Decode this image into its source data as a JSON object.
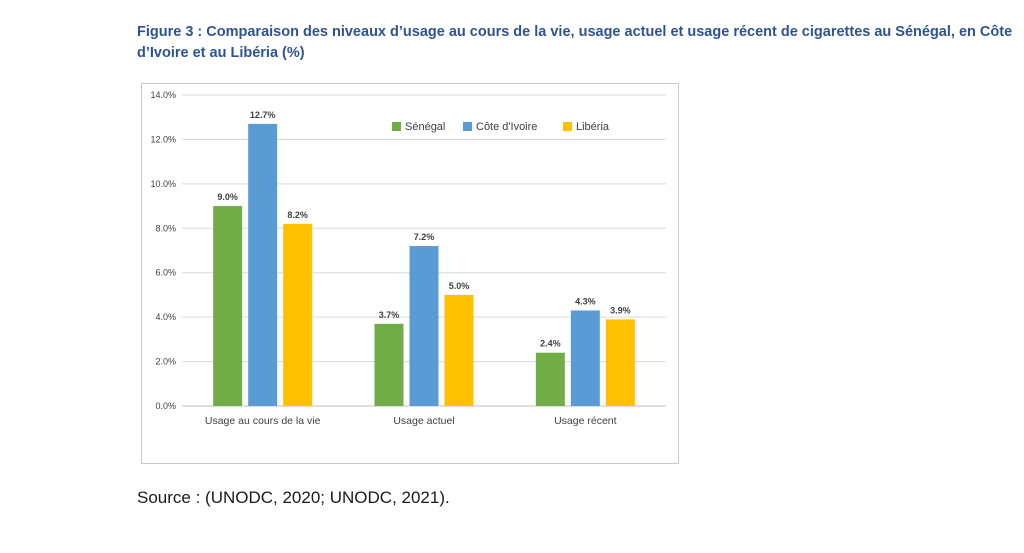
{
  "figure": {
    "title": "Figure 3 : Comparaison des niveaux d’usage au cours de la vie, usage actuel et usage récent de cigarettes au Sénégal, en Côte d’Ivoire et au Libéria (%)"
  },
  "source": "Source : (UNODC, 2020; UNODC, 2021).",
  "chart_data": {
    "type": "bar",
    "title": "",
    "xlabel": "",
    "ylabel": "",
    "categories": [
      "Usage au cours de la vie",
      "Usage actuel",
      "Usage récent"
    ],
    "series": [
      {
        "name": "Sénégal",
        "color": "#70AD47",
        "values": [
          9.0,
          3.7,
          2.4
        ],
        "labels": [
          "9.0%",
          "3.7%",
          "2.4%"
        ]
      },
      {
        "name": "Côte d'Ivoire",
        "color": "#5B9BD5",
        "values": [
          12.7,
          7.2,
          4.3
        ],
        "labels": [
          "12.7%",
          "7.2%",
          "4.3%"
        ]
      },
      {
        "name": "Libéria",
        "color": "#FFC000",
        "values": [
          8.2,
          5.0,
          3.9
        ],
        "labels": [
          "8.2%",
          "5.0%",
          "3.9%"
        ]
      }
    ],
    "ylim": [
      0,
      14
    ],
    "yticks": [
      0,
      2,
      4,
      6,
      8,
      10,
      12,
      14
    ],
    "ytick_labels": [
      "0.0%",
      "2.0%",
      "4.0%",
      "6.0%",
      "8.0%",
      "10.0%",
      "12.0%",
      "14.0%"
    ],
    "grid": true,
    "legend": "top-right"
  }
}
